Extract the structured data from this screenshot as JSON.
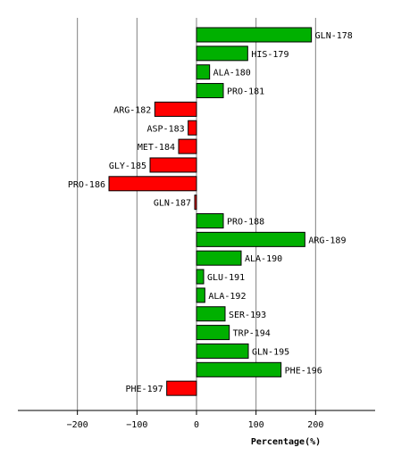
{
  "chart_data": {
    "type": "bar",
    "orientation": "horizontal",
    "title": "",
    "xlabel": "Percentage(%)",
    "ylabel": "",
    "xlim": [
      -300,
      300
    ],
    "xticks": [
      -200,
      -100,
      0,
      100,
      200
    ],
    "tick_labels": [
      "−200",
      "−100",
      "0",
      "100",
      "200"
    ],
    "grid": true,
    "colors": {
      "positive": "#00b000",
      "negative": "#ff0000",
      "edge": "#000000",
      "grid": "#808080"
    },
    "categories": [
      "GLN-178",
      "HIS-179",
      "ALA-180",
      "PRO-181",
      "ARG-182",
      "ASP-183",
      "MET-184",
      "GLY-185",
      "PRO-186",
      "GLN-187",
      "PRO-188",
      "ARG-189",
      "ALA-190",
      "GLU-191",
      "ALA-192",
      "SER-193",
      "TRP-194",
      "GLN-195",
      "PHE-196",
      "PHE-197"
    ],
    "values": [
      193,
      86,
      22,
      45,
      -70,
      -14,
      -30,
      -78,
      -147,
      -3,
      45,
      182,
      75,
      12,
      14,
      48,
      55,
      87,
      142,
      -50
    ]
  }
}
